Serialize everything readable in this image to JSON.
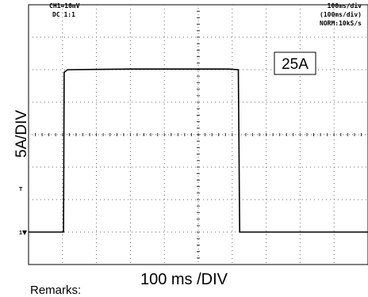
{
  "header": {
    "ch1": "CH1=10mV",
    "coupling": "DC  1:1",
    "timebase": "100ms/div",
    "timebase_sub": "(100ms/div)",
    "mode": "NORM:10kS/s"
  },
  "callout": "25A",
  "ylabel": "5A/DIV",
  "xlabel": "100 ms /DIV",
  "remarks": "Remarks:",
  "markers": {
    "trigger": "T",
    "ground": "1"
  },
  "colors": {
    "trace": "#000000",
    "grid": "#6a6a6a",
    "frame": "#000000"
  },
  "chart_data": {
    "type": "line",
    "title": "",
    "xlabel": "100 ms /DIV",
    "ylabel": "5A/DIV",
    "x_unit": "ms",
    "y_unit": "A",
    "xlim": [
      0,
      1000
    ],
    "ylim": [
      -5,
      35
    ],
    "grid": true,
    "series": [
      {
        "x": [
          0,
          103,
          105,
          115,
          300,
          590,
          618,
          622,
          700,
          1000
        ],
        "y": [
          0,
          0,
          24.6,
          25.0,
          25.1,
          25.1,
          25.0,
          0,
          0,
          0
        ]
      }
    ],
    "annotations": [
      "25A"
    ]
  }
}
